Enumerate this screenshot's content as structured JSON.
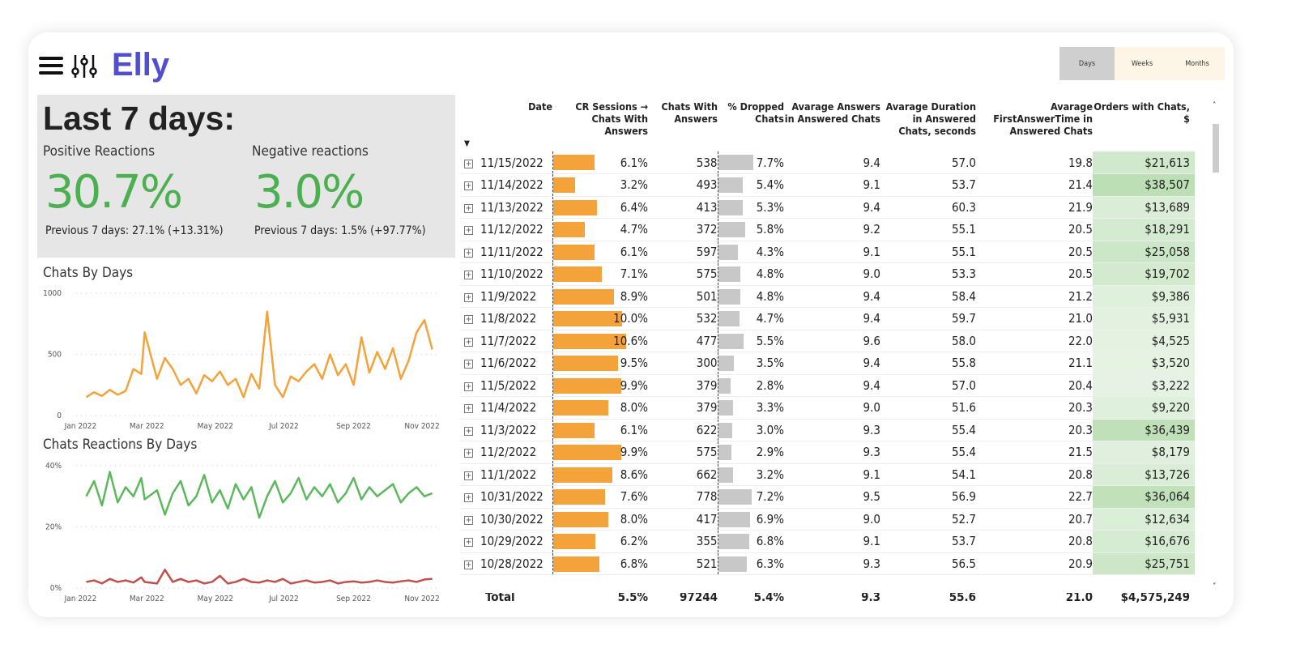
{
  "app": {
    "logo": "Elly"
  },
  "kpi": {
    "title": "Last 7 days:",
    "positive": {
      "label": "Positive Reactions",
      "value": "30.7%",
      "previous": "Previous 7 days: 27.1% (+13.31%)"
    },
    "negative": {
      "label": "Negative reactions",
      "value": "3.0%",
      "previous": "Previous 7 days: 1.5% (+97.77%)"
    }
  },
  "period_slicer": {
    "options": [
      "Days",
      "Weeks",
      "Months"
    ],
    "selected": "Days"
  },
  "colors": {
    "brand": "#4f4fcf",
    "orange": "#f4a23a",
    "positive": "#5cb85c",
    "negative": "#c0504d",
    "kpi_green": "#4caf50",
    "orders_bg": "#d4ecd0"
  },
  "chart_data": [
    {
      "type": "line",
      "title": "Chats By Days",
      "ylim": [
        0,
        1000
      ],
      "yticks": [
        "0",
        "500",
        "1000"
      ],
      "xticks": [
        "Jan 2022",
        "Mar 2022",
        "May 2022",
        "Jul 2022",
        "Sep 2022",
        "Nov 2022"
      ],
      "grid": true,
      "x": [
        "2022-01-10",
        "2022-01-17",
        "2022-01-24",
        "2022-01-31",
        "2022-02-07",
        "2022-02-14",
        "2022-02-21",
        "2022-02-28",
        "2022-03-03",
        "2022-03-14",
        "2022-03-21",
        "2022-03-28",
        "2022-04-04",
        "2022-04-11",
        "2022-04-18",
        "2022-04-25",
        "2022-05-02",
        "2022-05-09",
        "2022-05-16",
        "2022-05-23",
        "2022-05-30",
        "2022-06-06",
        "2022-06-13",
        "2022-06-20",
        "2022-06-27",
        "2022-07-04",
        "2022-07-11",
        "2022-07-18",
        "2022-07-25",
        "2022-08-01",
        "2022-08-08",
        "2022-08-15",
        "2022-08-22",
        "2022-08-29",
        "2022-09-05",
        "2022-09-12",
        "2022-09-19",
        "2022-09-26",
        "2022-10-03",
        "2022-10-10",
        "2022-10-17",
        "2022-10-24",
        "2022-10-31",
        "2022-11-07",
        "2022-11-14"
      ],
      "series": [
        {
          "values": [
            150,
            190,
            160,
            210,
            170,
            200,
            380,
            340,
            680,
            300,
            470,
            380,
            250,
            300,
            180,
            330,
            280,
            360,
            250,
            300,
            150,
            340,
            220,
            850,
            250,
            150,
            320,
            280,
            360,
            420,
            300,
            500,
            330,
            420,
            250,
            640,
            350,
            520,
            380,
            550,
            300,
            450,
            680,
            780,
            540
          ]
        }
      ]
    },
    {
      "type": "line",
      "title": "Chats Reactions By Days",
      "ylim": [
        0,
        40
      ],
      "yticks": [
        "0%",
        "20%",
        "40%"
      ],
      "xticks": [
        "Jan 2022",
        "Mar 2022",
        "May 2022",
        "Jul 2022",
        "Sep 2022",
        "Nov 2022"
      ],
      "grid": true,
      "x": [
        "2022-01-10",
        "2022-01-17",
        "2022-01-24",
        "2022-01-31",
        "2022-02-07",
        "2022-02-14",
        "2022-02-21",
        "2022-02-28",
        "2022-03-03",
        "2022-03-14",
        "2022-03-21",
        "2022-03-28",
        "2022-04-04",
        "2022-04-11",
        "2022-04-18",
        "2022-04-25",
        "2022-05-02",
        "2022-05-09",
        "2022-05-16",
        "2022-05-23",
        "2022-05-30",
        "2022-06-06",
        "2022-06-13",
        "2022-06-20",
        "2022-06-27",
        "2022-07-04",
        "2022-07-11",
        "2022-07-18",
        "2022-07-25",
        "2022-08-01",
        "2022-08-08",
        "2022-08-15",
        "2022-08-22",
        "2022-08-29",
        "2022-09-05",
        "2022-09-12",
        "2022-09-19",
        "2022-09-26",
        "2022-10-03",
        "2022-10-10",
        "2022-10-17",
        "2022-10-24",
        "2022-10-31",
        "2022-11-07",
        "2022-11-14"
      ],
      "series": [
        {
          "values": [
            30,
            35,
            27,
            38,
            28,
            33,
            30,
            36,
            29,
            32,
            24,
            31,
            35,
            27,
            30,
            37,
            28,
            32,
            26,
            34,
            29,
            33,
            23,
            30,
            35,
            28,
            31,
            36,
            29,
            33,
            30,
            34,
            28,
            31,
            36,
            29,
            33,
            30,
            32,
            34,
            28,
            31,
            33,
            30,
            31
          ]
        },
        {
          "values": [
            2,
            2.5,
            1.5,
            3,
            2,
            2.5,
            1.8,
            3.5,
            2,
            1.5,
            6,
            2,
            3,
            2,
            2.5,
            1.5,
            2,
            4,
            1.5,
            2,
            3,
            2,
            1.8,
            2.5,
            2,
            3,
            1.5,
            2,
            2.5,
            1.8,
            2,
            2.5,
            1.5,
            2,
            2.2,
            1.8,
            2,
            2.5,
            2,
            1.8,
            2.2,
            2.5,
            2,
            2.8,
            3
          ]
        }
      ]
    }
  ],
  "table": {
    "headers": [
      "Date",
      "CR Sessions → Chats With Answers",
      "Chats With Answers",
      "% Dropped Chats",
      "Avarage Answers in Answered Chats",
      "Avarage Duration in Answered Chats, seconds",
      "Avarage FirstAnswerTime in Answered Chats",
      "Orders with Chats, $"
    ],
    "rows": [
      [
        "11/15/2022",
        "6.1%",
        "538",
        "7.7%",
        "9.4",
        "57.0",
        "19.8",
        "$21,613"
      ],
      [
        "11/14/2022",
        "3.2%",
        "493",
        "5.4%",
        "9.1",
        "53.7",
        "21.4",
        "$38,507"
      ],
      [
        "11/13/2022",
        "6.4%",
        "413",
        "5.3%",
        "9.4",
        "60.3",
        "21.9",
        "$13,689"
      ],
      [
        "11/12/2022",
        "4.7%",
        "372",
        "5.8%",
        "9.2",
        "55.1",
        "20.5",
        "$18,291"
      ],
      [
        "11/11/2022",
        "6.1%",
        "597",
        "4.3%",
        "9.1",
        "55.1",
        "20.5",
        "$25,058"
      ],
      [
        "11/10/2022",
        "7.1%",
        "575",
        "4.8%",
        "9.0",
        "53.3",
        "20.5",
        "$19,702"
      ],
      [
        "11/9/2022",
        "8.9%",
        "501",
        "4.8%",
        "9.4",
        "58.4",
        "21.2",
        "$9,386"
      ],
      [
        "11/8/2022",
        "10.0%",
        "532",
        "4.7%",
        "9.4",
        "59.7",
        "21.0",
        "$5,931"
      ],
      [
        "11/7/2022",
        "10.6%",
        "477",
        "5.5%",
        "9.6",
        "58.0",
        "22.0",
        "$4,525"
      ],
      [
        "11/6/2022",
        "9.5%",
        "300",
        "3.5%",
        "9.4",
        "55.8",
        "21.1",
        "$3,520"
      ],
      [
        "11/5/2022",
        "9.9%",
        "379",
        "2.8%",
        "9.4",
        "57.0",
        "20.4",
        "$3,222"
      ],
      [
        "11/4/2022",
        "8.0%",
        "379",
        "3.3%",
        "9.0",
        "51.6",
        "20.3",
        "$9,220"
      ],
      [
        "11/3/2022",
        "6.1%",
        "622",
        "3.0%",
        "9.3",
        "55.4",
        "20.3",
        "$36,439"
      ],
      [
        "11/2/2022",
        "9.9%",
        "575",
        "2.9%",
        "9.3",
        "55.4",
        "21.5",
        "$8,179"
      ],
      [
        "11/1/2022",
        "8.6%",
        "662",
        "3.2%",
        "9.1",
        "54.1",
        "20.8",
        "$13,726"
      ],
      [
        "10/31/2022",
        "7.6%",
        "778",
        "7.2%",
        "9.5",
        "56.9",
        "22.7",
        "$36,064"
      ],
      [
        "10/30/2022",
        "8.0%",
        "417",
        "6.9%",
        "9.0",
        "52.7",
        "20.7",
        "$12,634"
      ],
      [
        "10/29/2022",
        "6.2%",
        "355",
        "6.8%",
        "9.1",
        "53.7",
        "20.8",
        "$16,676"
      ],
      [
        "10/28/2022",
        "6.8%",
        "521",
        "6.3%",
        "9.3",
        "56.5",
        "20.9",
        "$25,751"
      ]
    ],
    "total": [
      "Total",
      "5.5%",
      "97244",
      "5.4%",
      "9.3",
      "55.6",
      "21.0",
      "$4,575,249"
    ]
  }
}
